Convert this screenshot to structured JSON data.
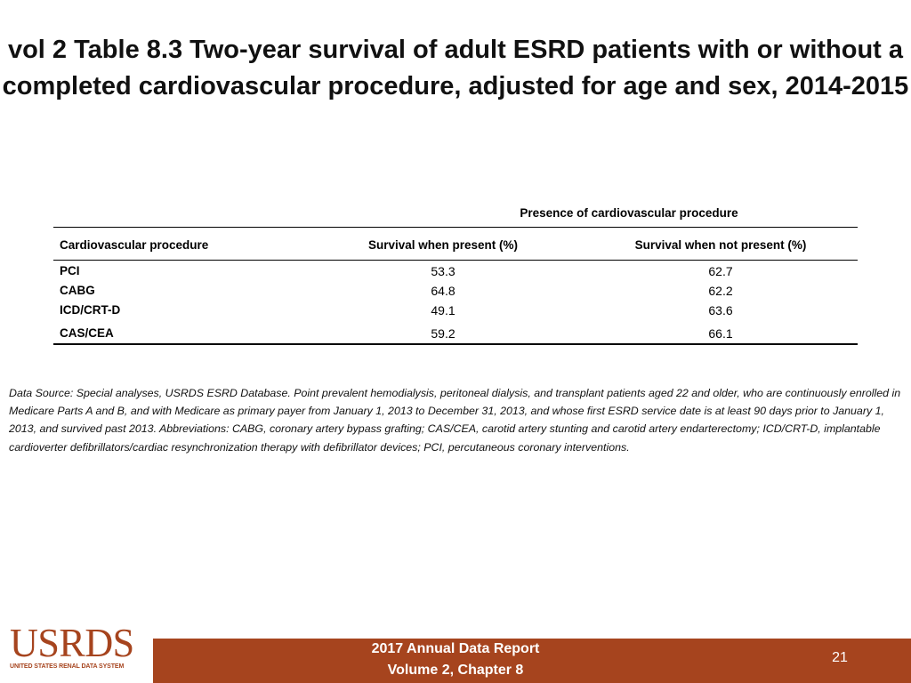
{
  "slide": {
    "title": "vol 2 Table 8.3 Two-year survival of adult ESRD patients with or without a completed cardiovascular procedure, adjusted for age and sex, 2014-2015"
  },
  "table": {
    "group_header": "Presence of cardiovascular procedure",
    "columns": [
      "Cardiovascular procedure",
      "Survival when present (%)",
      "Survival when not present (%)"
    ],
    "rows": [
      {
        "procedure": "PCI",
        "present": "53.3",
        "not_present": "62.7"
      },
      {
        "procedure": "CABG",
        "present": "64.8",
        "not_present": "62.2"
      },
      {
        "procedure": "ICD/CRT-D",
        "present": "49.1",
        "not_present": "63.6"
      },
      {
        "procedure": "CAS/CEA",
        "present": "59.2",
        "not_present": "66.1"
      }
    ]
  },
  "note": "Data Source: Special analyses, USRDS ESRD Database. Point prevalent hemodialysis, peritoneal dialysis, and transplant patients aged 22 and older, who are continuously enrolled in Medicare Parts A and B, and with Medicare as primary payer from January 1, 2013 to December 31, 2013, and whose first ESRD service date is at least 90 days prior to January 1, 2013, and survived past 2013. Abbreviations: CABG, coronary artery bypass grafting; CAS/CEA, carotid artery stunting and carotid artery endarterectomy; ICD/CRT-D, implantable cardioverter defibrillators/cardiac resynchronization therapy with defibrillator devices; PCI, percutaneous coronary interventions.",
  "footer": {
    "line1": "2017 Annual Data Report",
    "line2": "Volume 2, Chapter 8",
    "page_number": "21",
    "logo_text": "USRDS",
    "logo_subtext": "UNITED STATES RENAL DATA SYSTEM",
    "color": "#a6441e"
  }
}
